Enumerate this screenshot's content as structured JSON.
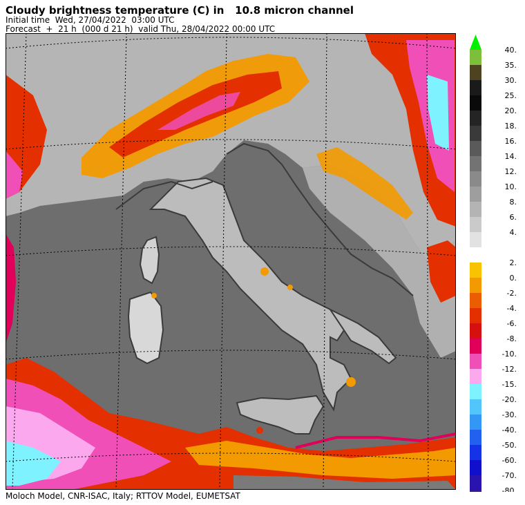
{
  "header": {
    "title": "Cloudy brightness temperature (C) in   10.8 micron channel",
    "initial_time": "Initial time  Wed, 27/04/2022  03:00 UTC",
    "forecast": "Forecast  +  21 h  (000 d 21 h)  valid Thu, 28/04/2022 00:00 UTC"
  },
  "footer": {
    "credits": "Moloch Model, CNR-ISAC, Italy; RTTOV Model, EUMETSAT"
  },
  "legend": {
    "units": "C",
    "upper_block": [
      {
        "label": "40.",
        "color": "#7dbf3a"
      },
      {
        "label": "35.",
        "color": "#4e4320"
      },
      {
        "label": "30.",
        "color": "#1a1a1a"
      },
      {
        "label": "25.",
        "color": "#0a0a0a"
      },
      {
        "label": "20.",
        "color": "#242424"
      },
      {
        "label": "18.",
        "color": "#3a3a3a"
      },
      {
        "label": "16.",
        "color": "#5a5a5a"
      },
      {
        "label": "14.",
        "color": "#737373"
      },
      {
        "label": "12.",
        "color": "#8a8a8a"
      },
      {
        "label": "10.",
        "color": "#9e9e9e"
      },
      {
        "label": "8.",
        "color": "#b4b4b4"
      },
      {
        "label": "6.",
        "color": "#cacaca"
      },
      {
        "label": "4.",
        "color": "#e2e2e2"
      }
    ],
    "lower_block": [
      {
        "label": "2.",
        "color": "#f8c300"
      },
      {
        "label": "0.",
        "color": "#f39a00"
      },
      {
        "label": "-2.",
        "color": "#ea5d00"
      },
      {
        "label": "-4.",
        "color": "#e43000"
      },
      {
        "label": "-6.",
        "color": "#d60f0f"
      },
      {
        "label": "-8.",
        "color": "#e0005a"
      },
      {
        "label": "-10.",
        "color": "#f04fb8"
      },
      {
        "label": "-12.",
        "color": "#fca8ef"
      },
      {
        "label": "-15.",
        "color": "#7ff2ff"
      },
      {
        "label": "-20.",
        "color": "#52c6fb"
      },
      {
        "label": "-30.",
        "color": "#3398f5"
      },
      {
        "label": "-40.",
        "color": "#2261f0"
      },
      {
        "label": "-50.",
        "color": "#1432e6"
      },
      {
        "label": "-60.",
        "color": "#1010cc"
      },
      {
        "label": "-70.",
        "color": "#2a14b0"
      },
      {
        "label": "-80.",
        "color": "#3a1a90"
      }
    ],
    "top_arrow_color": "#00f000",
    "bottom_arrow_color": "#3a1a90"
  },
  "map": {
    "sea_color": "#6e6e6e",
    "land_color": "#b8b8b8",
    "coast_color": "#3a3a3a",
    "grid_color": "#000000"
  }
}
